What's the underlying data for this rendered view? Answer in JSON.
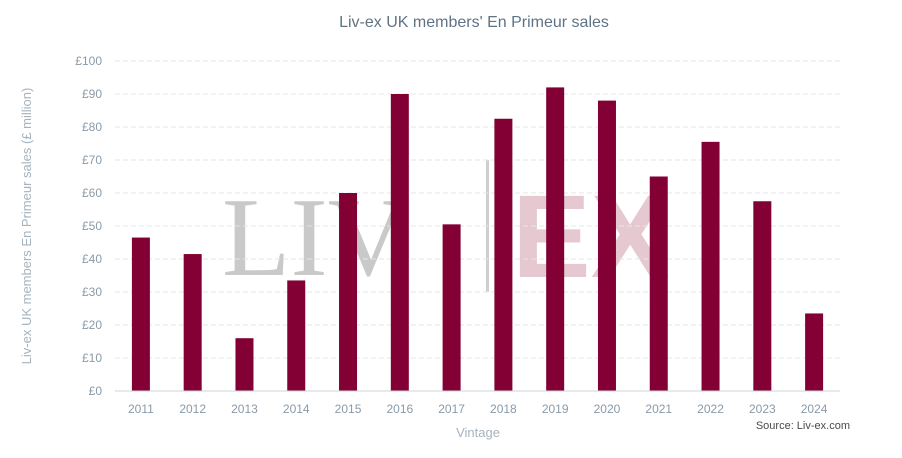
{
  "chart_data": {
    "type": "bar",
    "title": "Liv-ex UK members' En Primeur sales",
    "xlabel": "Vintage",
    "ylabel": "Liv-ex UK members En Primeur sales (£ million)",
    "categories": [
      "2011",
      "2012",
      "2013",
      "2014",
      "2015",
      "2016",
      "2017",
      "2018",
      "2019",
      "2020",
      "2021",
      "2022",
      "2023",
      "2024"
    ],
    "values": [
      46.5,
      41.5,
      16,
      33.5,
      60,
      90,
      50.5,
      82.5,
      92,
      88,
      65,
      75.5,
      57.5,
      23.5
    ],
    "ylim": [
      0,
      100
    ],
    "yticks": [
      "£0",
      "£10",
      "£20",
      "£30",
      "£40",
      "£50",
      "£60",
      "£70",
      "£80",
      "£90",
      "£100"
    ],
    "grid": true,
    "bar_color": "#820033",
    "source": "Source: Liv-ex.com",
    "watermark": {
      "left": "LIV",
      "right": "EX"
    }
  }
}
